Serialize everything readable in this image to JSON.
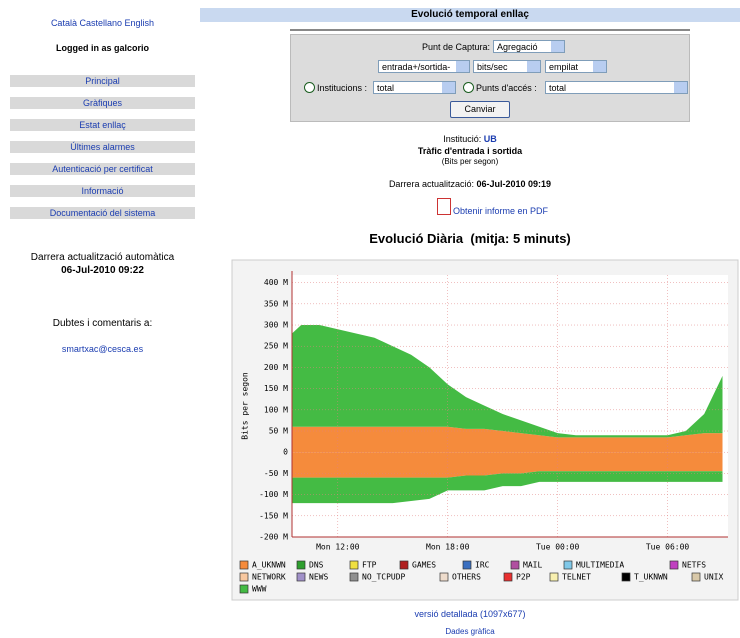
{
  "sidebar": {
    "languages": [
      "Català",
      "Castellano",
      "English"
    ],
    "logged_in": "Logged in as galcorio",
    "menu": [
      "Principal",
      "Gràfiques",
      "Estat enllaç",
      "Últimes alarmes",
      "Autenticació per certificat",
      "Informació",
      "Documentació del sistema"
    ],
    "auto_update_label": "Darrera actualització automàtica",
    "auto_update_time": "06-Jul-2010 09:22",
    "contact_label": "Dubtes i comentaris a:",
    "contact_email": "smartxac@cesca.es"
  },
  "main": {
    "title": "Evolució temporal enllaç",
    "form": {
      "capture_label": "Punt de Captura:",
      "capture_value": "Agregació",
      "selects": [
        "entrada+/sortida-",
        "bits/sec",
        "empilat"
      ],
      "institutions_label": "Institucions :",
      "institutions_value": "total",
      "access_label": "Punts d'accés :",
      "access_value": "total",
      "button": "Canviar"
    },
    "info": {
      "institution_label": "Institució:",
      "institution_value": "UB",
      "traffic_title": "Tràfic d'entrada i sortida",
      "units": "(Bits per segon)",
      "last_update_label": "Darrera actualització:",
      "last_update_value": "06-Jul-2010 09:19",
      "pdf_link": "Obtenir informe en PDF",
      "graph_heading": "Evolució Diària  (mitja: 5 minuts)"
    },
    "links": [
      "versió detallada (1097x677)",
      "Dades gràfica"
    ]
  },
  "chart_data": {
    "type": "area",
    "y_label": "Bits per segon",
    "grid": true,
    "xlim": [
      9.5,
      33.3
    ],
    "ylim": [
      -200,
      418
    ],
    "xticks": [
      {
        "value": 12,
        "label": "Mon 12:00"
      },
      {
        "value": 18,
        "label": "Mon 18:00"
      },
      {
        "value": 24,
        "label": "Tue 00:00"
      },
      {
        "value": 30,
        "label": "Tue 06:00"
      }
    ],
    "yticks": [
      {
        "value": -200,
        "label": "-200 M"
      },
      {
        "value": -150,
        "label": "-150 M"
      },
      {
        "value": -100,
        "label": "-100 M"
      },
      {
        "value": -50,
        "label": "-50 M"
      },
      0,
      {
        "value": 50,
        "label": "50 M"
      },
      {
        "value": 100,
        "label": "100 M"
      },
      {
        "value": 150,
        "label": "150 M"
      },
      {
        "value": 200,
        "label": "200 M"
      },
      {
        "value": 250,
        "label": "250 M"
      },
      {
        "value": 300,
        "label": "300 M"
      },
      {
        "value": 350,
        "label": "350 M"
      },
      {
        "value": 400,
        "label": "400 M"
      }
    ],
    "x": [
      9.5,
      10,
      11,
      12,
      13,
      14,
      15,
      16,
      17,
      18,
      19,
      20,
      21,
      22,
      23,
      24,
      25,
      26,
      27,
      28,
      29,
      30,
      31,
      32,
      33
    ],
    "series": [
      {
        "name": "A_UKNWN",
        "color": "#f58b3c",
        "values": [
          60,
          60,
          60,
          60,
          60,
          60,
          60,
          60,
          60,
          60,
          55,
          55,
          50,
          45,
          40,
          35,
          35,
          35,
          35,
          35,
          35,
          35,
          40,
          45,
          45
        ],
        "out_values": [
          -60,
          -60,
          -60,
          -60,
          -60,
          -60,
          -60,
          -60,
          -60,
          -60,
          -55,
          -55,
          -50,
          -50,
          -45,
          -45,
          -45,
          -45,
          -45,
          -45,
          -45,
          -45,
          -45,
          -45,
          -45
        ]
      },
      {
        "name": "DNS",
        "color": "#2e9e2e"
      },
      {
        "name": "FTP",
        "color": "#f0e040"
      },
      {
        "name": "GAMES",
        "color": "#b02020"
      },
      {
        "name": "IRC",
        "color": "#3a6fc0"
      },
      {
        "name": "MAIL",
        "color": "#b050a0"
      },
      {
        "name": "MULTIMEDIA",
        "color": "#80c8e8"
      },
      {
        "name": "NETFS",
        "color": "#c040c0"
      },
      {
        "name": "NETWORK",
        "color": "#f8c8a0"
      },
      {
        "name": "NEWS",
        "color": "#a090c8"
      },
      {
        "name": "NO_TCPUDP",
        "color": "#909090"
      },
      {
        "name": "OTHERS",
        "color": "#eedccc"
      },
      {
        "name": "P2P",
        "color": "#e83030"
      },
      {
        "name": "TELNET",
        "color": "#f8f0b0"
      },
      {
        "name": "T_UKNWN",
        "color": "#000000"
      },
      {
        "name": "UNIX",
        "color": "#d8c8a8"
      },
      {
        "name": "WWW",
        "color": "#44bb44",
        "values": [
          220,
          240,
          240,
          230,
          220,
          210,
          190,
          170,
          140,
          100,
          75,
          55,
          40,
          30,
          20,
          10,
          5,
          5,
          5,
          5,
          5,
          5,
          10,
          45,
          135
        ],
        "out_values": [
          -60,
          -60,
          -60,
          -60,
          -60,
          -60,
          -60,
          -55,
          -50,
          -30,
          -35,
          -35,
          -30,
          -30,
          -25,
          -25,
          -25,
          -25,
          -25,
          -25,
          -25,
          -25,
          -25,
          -25,
          -25
        ]
      }
    ]
  }
}
